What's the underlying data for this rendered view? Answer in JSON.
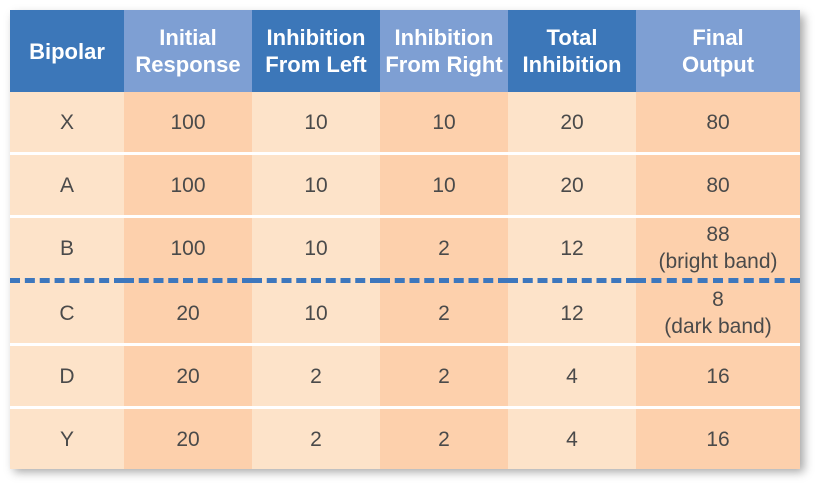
{
  "table": {
    "headers": [
      "Bipolar",
      "Initial\nResponse",
      "Inhibition\nFrom Left",
      "Inhibition\nFrom Right",
      "Total\nInhibition",
      "Final\nOutput"
    ],
    "rows": [
      [
        "X",
        "100",
        "10",
        "10",
        "20",
        "80"
      ],
      [
        "A",
        "100",
        "10",
        "10",
        "20",
        "80"
      ],
      [
        "B",
        "100",
        "10",
        "2",
        "12",
        "88\n(bright band)"
      ],
      [
        "C",
        "20",
        "10",
        "2",
        "12",
        "8\n(dark band)"
      ],
      [
        "D",
        "20",
        "2",
        "2",
        "4",
        "16"
      ],
      [
        "Y",
        "20",
        "2",
        "2",
        "4",
        "16"
      ]
    ]
  },
  "colors": {
    "header_dark": "#3c77b9",
    "header_light": "#7e9fd3",
    "cell_light": "#fde3c9",
    "cell_dark": "#fdd0ac",
    "divider": "#3d77bd"
  }
}
